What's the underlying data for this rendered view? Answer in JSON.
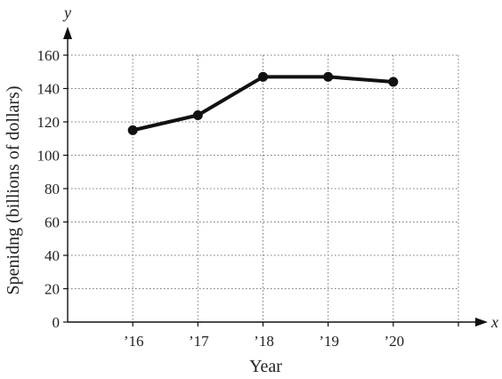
{
  "chart_data": {
    "type": "line",
    "title": "",
    "xlabel": "Year",
    "ylabel": "Spenidng (billions of dollars)",
    "x_axis_var": "x",
    "y_axis_var": "y",
    "categories": [
      "’16",
      "’17",
      "’18",
      "’19",
      "’20"
    ],
    "x": [
      16,
      17,
      18,
      19,
      20
    ],
    "xlim": [
      15,
      21
    ],
    "ylim": [
      0,
      160
    ],
    "yticks": [
      0,
      20,
      40,
      60,
      80,
      100,
      120,
      140,
      160
    ],
    "grid": true,
    "series": [
      {
        "values": [
          115,
          124,
          147,
          147,
          144
        ]
      }
    ],
    "colors": {
      "line": "#111111",
      "marker": "#111111",
      "grid": "#777777"
    }
  }
}
